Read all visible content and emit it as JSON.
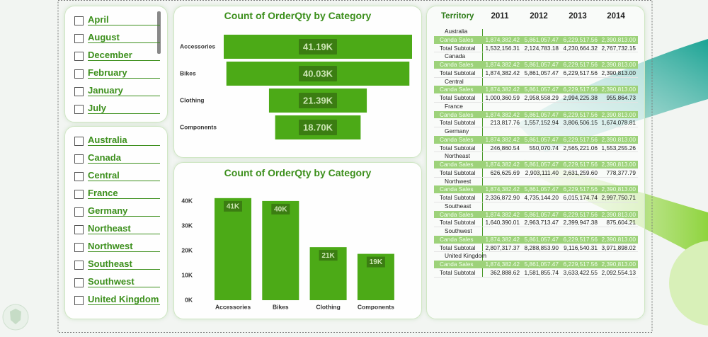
{
  "months": {
    "items": [
      "April",
      "August",
      "December",
      "February",
      "January",
      "July"
    ]
  },
  "territories": {
    "items": [
      "Australia",
      "Canada",
      "Central",
      "France",
      "Germany",
      "Northeast",
      "Northwest",
      "Southeast",
      "Southwest",
      "United Kingdom"
    ]
  },
  "chart_data": [
    {
      "type": "funnel",
      "title": "Count of OrderQty by Category",
      "color": "#4caa17",
      "categories": [
        "Accessories",
        "Bikes",
        "Clothing",
        "Components"
      ],
      "values": [
        41190,
        40030,
        21390,
        18700
      ],
      "value_labels": [
        "41.19K",
        "40.03K",
        "21.39K",
        "18.70K"
      ]
    },
    {
      "type": "bar",
      "title": "Count of OrderQty by Category",
      "color": "#4caa17",
      "categories": [
        "Accessories",
        "Bikes",
        "Clothing",
        "Components"
      ],
      "values": [
        41190,
        40030,
        21390,
        18700
      ],
      "value_labels": [
        "41K",
        "40K",
        "21K",
        "19K"
      ],
      "ylim": [
        0,
        45000
      ],
      "yticks": [
        {
          "value": 0,
          "label": "0K"
        },
        {
          "value": 10000,
          "label": "10K"
        },
        {
          "value": 20000,
          "label": "20K"
        },
        {
          "value": 30000,
          "label": "30K"
        },
        {
          "value": 40000,
          "label": "40K"
        }
      ],
      "grid": false
    }
  ],
  "table": {
    "header": [
      "Territory",
      "2011",
      "2012",
      "2013",
      "2014"
    ],
    "sales_label": "Canda Sales",
    "sales": [
      "1,874,382.42",
      "5,861,057.47",
      "6,229,517.56",
      "2,390,813.00"
    ],
    "subtotal_label": "Total Subtotal",
    "groups": [
      {
        "territory": "Australia",
        "subtotal": [
          "1,532,156.31",
          "2,124,783.18",
          "4,230,664.32",
          "2,767,732.15"
        ]
      },
      {
        "territory": "Canada",
        "subtotal": [
          "1,874,382.42",
          "5,861,057.47",
          "6,229,517.56",
          "2,390,813.00"
        ]
      },
      {
        "territory": "Central",
        "subtotal": [
          "1,000,360.59",
          "2,958,558.29",
          "2,994,225.38",
          "955,864.73"
        ]
      },
      {
        "territory": "France",
        "subtotal": [
          "213,817.76",
          "1,557,152.94",
          "3,806,506.15",
          "1,674,078.81"
        ]
      },
      {
        "territory": "Germany",
        "subtotal": [
          "246,860.54",
          "550,070.74",
          "2,565,221.06",
          "1,553,255.26"
        ]
      },
      {
        "territory": "Northeast",
        "subtotal": [
          "626,625.69",
          "2,903,111.40",
          "2,631,259.60",
          "778,377.79"
        ]
      },
      {
        "territory": "Northwest",
        "subtotal": [
          "2,336,872.90",
          "4,735,144.20",
          "6,015,174.74",
          "2,997,750.71"
        ]
      },
      {
        "territory": "Southeast",
        "subtotal": [
          "1,640,390.01",
          "2,963,713.47",
          "2,399,947.38",
          "875,604.21"
        ]
      },
      {
        "territory": "Southwest",
        "subtotal": [
          "2,807,317.37",
          "8,288,853.90",
          "9,116,540.31",
          "3,971,898.02"
        ]
      },
      {
        "territory": "United Kingdom",
        "subtotal": [
          "362,888.62",
          "1,581,855.74",
          "3,633,422.55",
          "2,092,554.13"
        ]
      }
    ]
  }
}
